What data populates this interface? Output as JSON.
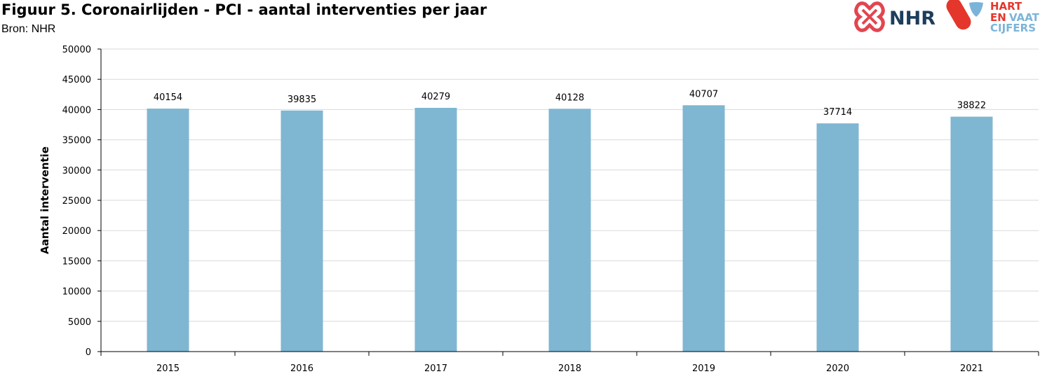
{
  "header": {
    "title": "Figuur 5. Coronairlijden - PCI - aantal interventies per jaar",
    "source": "Bron: NHR"
  },
  "logo": {
    "nhr_text": "NHR",
    "hart_text": "HART",
    "en_text": "EN",
    "vaat_text": "VAAT",
    "cijfers_text": "CIJFERS",
    "colors": {
      "nhr_red": "#e2454f",
      "nhr_navy": "#1d3d5c",
      "hv_red": "#e5362c",
      "hv_blue": "#7bb4d8"
    }
  },
  "chart_data": {
    "type": "bar",
    "categories": [
      "2015",
      "2016",
      "2017",
      "2018",
      "2019",
      "2020",
      "2021"
    ],
    "values": [
      40154,
      39835,
      40279,
      40128,
      40707,
      37714,
      38822
    ],
    "data_labels": [
      "40154",
      "39835",
      "40279",
      "40128",
      "40707",
      "37714",
      "38822"
    ],
    "ylabel": "Aantal interventie",
    "xlabel": "",
    "ylim": [
      0,
      50000
    ],
    "yticks": [
      0,
      5000,
      10000,
      15000,
      20000,
      25000,
      30000,
      35000,
      40000,
      45000,
      50000
    ],
    "ytick_labels": [
      "0",
      "5000",
      "10000",
      "15000",
      "20000",
      "25000",
      "30000",
      "35000",
      "40000",
      "45000",
      "50000"
    ],
    "grid": true,
    "bar_color": "#7fb6d2",
    "grid_color": "#d9d9d9"
  }
}
